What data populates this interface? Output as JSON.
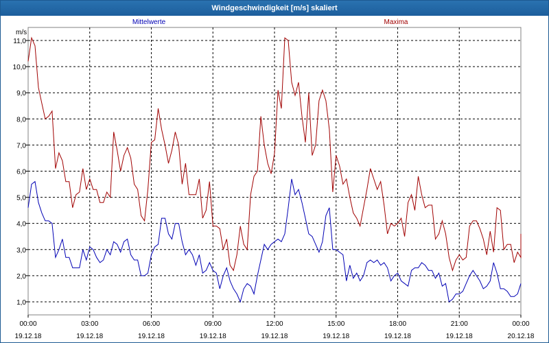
{
  "window": {
    "title": "Windgeschwindigkeit [m/s] skaliert"
  },
  "chart_data": {
    "type": "line",
    "title": "Windgeschwindigkeit [m/s] skaliert",
    "ylabel": "m/s",
    "xlabel": "",
    "ylim": [
      0.5,
      11.5
    ],
    "yticks": [
      1.0,
      2.0,
      3.0,
      4.0,
      5.0,
      6.0,
      7.0,
      8.0,
      9.0,
      10.0,
      11.0
    ],
    "ytick_labels": [
      "1,0",
      "2,0",
      "3,0",
      "4,0",
      "5,0",
      "6,0",
      "7,0",
      "8,0",
      "9,0",
      "10,0",
      "11,0"
    ],
    "x_start": "19.12.18 00:00",
    "x_end": "20.12.18 00:00",
    "x_step_hours": 0.1667,
    "xticks": [
      {
        "time": "00:00",
        "date": "19.12.18"
      },
      {
        "time": "03:00",
        "date": "19.12.18"
      },
      {
        "time": "06:00",
        "date": "19.12.18"
      },
      {
        "time": "09:00",
        "date": "19.12.18"
      },
      {
        "time": "12:00",
        "date": "19.12.18"
      },
      {
        "time": "15:00",
        "date": "19.12.18"
      },
      {
        "time": "18:00",
        "date": "19.12.18"
      },
      {
        "time": "21:00",
        "date": "19.12.18"
      },
      {
        "time": "00:00",
        "date": "20.12.18"
      }
    ],
    "grid": true,
    "legend_position": "top",
    "series": [
      {
        "name": "Mittelwerte",
        "color": "#0000b4",
        "values": [
          4.6,
          5.5,
          5.6,
          4.8,
          4.4,
          4.1,
          4.1,
          4.0,
          2.7,
          3.0,
          3.4,
          2.7,
          2.7,
          2.3,
          2.3,
          2.3,
          3.0,
          2.6,
          3.1,
          3.0,
          2.7,
          2.5,
          2.6,
          3.0,
          2.8,
          3.3,
          3.2,
          2.9,
          3.3,
          3.4,
          2.8,
          2.6,
          2.6,
          2.0,
          2.0,
          2.1,
          2.8,
          3.1,
          3.2,
          4.2,
          4.2,
          3.6,
          3.4,
          4.0,
          4.0,
          3.3,
          2.8,
          3.0,
          2.8,
          2.4,
          2.8,
          2.1,
          2.2,
          2.5,
          2.2,
          2.1,
          1.5,
          2.0,
          2.3,
          1.8,
          1.5,
          1.3,
          1.0,
          1.5,
          1.7,
          1.6,
          1.3,
          2.0,
          2.6,
          3.2,
          3.0,
          3.2,
          3.3,
          3.4,
          3.3,
          3.6,
          4.6,
          5.7,
          5.1,
          5.3,
          4.8,
          4.2,
          3.6,
          3.5,
          3.2,
          2.9,
          3.3,
          4.3,
          4.6,
          3.0,
          3.0,
          2.9,
          2.8,
          1.8,
          2.4,
          1.9,
          2.1,
          1.8,
          2.0,
          2.5,
          2.6,
          2.5,
          2.6,
          2.4,
          2.5,
          2.3,
          1.8,
          2.0,
          2.1,
          1.8,
          1.7,
          1.6,
          2.2,
          2.3,
          2.3,
          2.5,
          2.4,
          2.2,
          2.2,
          1.9,
          2.1,
          1.6,
          1.7,
          1.0,
          1.1,
          1.3,
          1.3,
          1.4,
          1.7,
          2.0,
          2.2,
          2.0,
          1.8,
          1.5,
          1.6,
          1.8,
          2.5,
          2.1,
          1.5,
          1.5,
          1.4,
          1.2,
          1.2,
          1.3,
          1.7
        ]
      },
      {
        "name": "Maxima",
        "color": "#a00000",
        "values": [
          10.2,
          11.1,
          10.8,
          9.2,
          8.6,
          8.0,
          8.1,
          8.3,
          6.1,
          6.7,
          6.4,
          5.6,
          5.6,
          4.6,
          5.1,
          5.2,
          6.1,
          5.3,
          5.7,
          5.3,
          5.3,
          4.8,
          4.8,
          5.2,
          5.0,
          7.5,
          6.8,
          6.0,
          6.6,
          6.9,
          6.5,
          5.5,
          5.3,
          4.3,
          4.1,
          5.3,
          7.1,
          7.2,
          8.4,
          7.6,
          7.0,
          6.3,
          6.8,
          7.5,
          7.0,
          5.5,
          6.3,
          5.1,
          5.1,
          5.1,
          5.7,
          4.2,
          4.5,
          5.6,
          3.9,
          3.9,
          3.8,
          3.0,
          3.4,
          2.4,
          2.2,
          2.8,
          3.9,
          3.2,
          3.0,
          5.1,
          5.8,
          6.0,
          8.1,
          7.0,
          6.3,
          5.9,
          6.7,
          9.1,
          8.4,
          11.1,
          11.0,
          9.4,
          8.9,
          9.4,
          8.1,
          7.1,
          9.0,
          6.6,
          7.0,
          8.7,
          9.1,
          8.7,
          7.6,
          5.2,
          6.6,
          6.2,
          5.5,
          5.7,
          5.0,
          4.4,
          4.2,
          3.9,
          4.6,
          5.3,
          6.1,
          5.7,
          5.3,
          5.6,
          4.7,
          3.6,
          4.0,
          3.9,
          4.0,
          4.2,
          3.5,
          4.8,
          5.1,
          4.5,
          5.8,
          5.1,
          4.6,
          4.7,
          4.7,
          3.4,
          3.6,
          4.1,
          3.6,
          2.7,
          2.2,
          2.6,
          2.8,
          2.6,
          2.7,
          3.9,
          4.1,
          4.1,
          3.8,
          3.4,
          2.8,
          3.7,
          2.9,
          4.6,
          4.5,
          3.0,
          3.2,
          3.2,
          2.5,
          2.9,
          2.7,
          3.6
        ]
      }
    ]
  }
}
